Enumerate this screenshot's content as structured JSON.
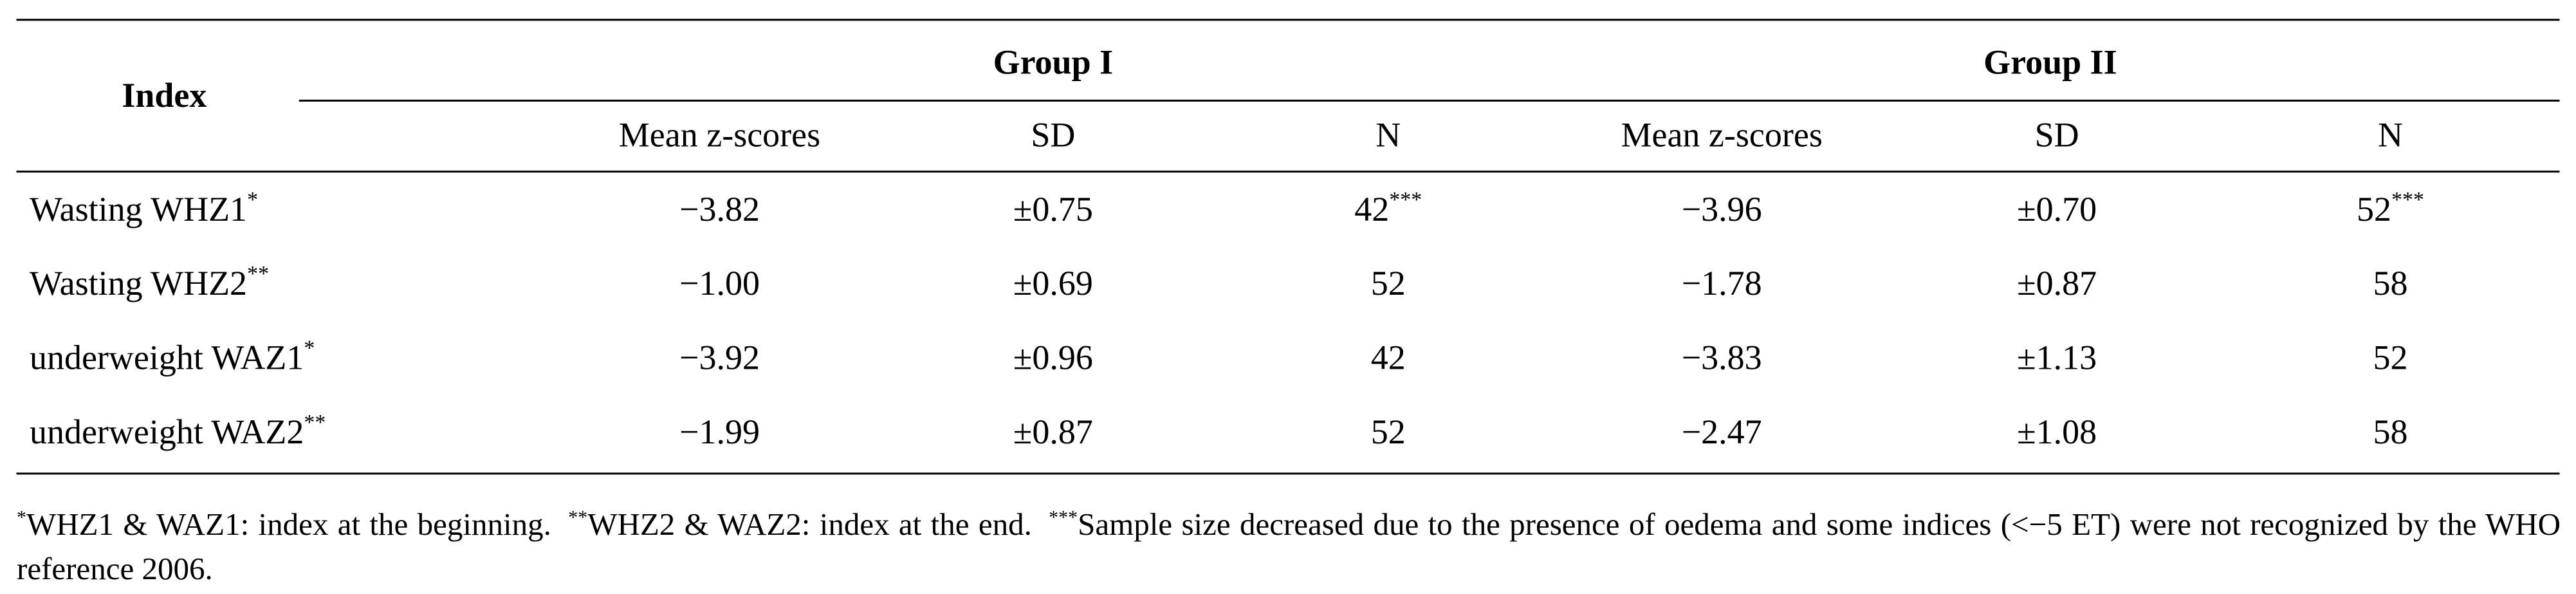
{
  "table": {
    "header": {
      "index": "Index",
      "groups": [
        "Group I",
        "Group II"
      ],
      "columns": [
        "Mean z-scores",
        "SD",
        "N",
        "Mean z-scores",
        "SD",
        "N"
      ]
    },
    "rows": [
      [
        {
          "text": "Wasting WHZ1",
          "sup": "*"
        },
        "−3.82",
        "±0.75",
        {
          "text": "42",
          "sup": "***"
        },
        "−3.96",
        "±0.70",
        {
          "text": "52",
          "sup": "***"
        }
      ],
      [
        {
          "text": "Wasting WHZ2",
          "sup": "**"
        },
        "−1.00",
        "±0.69",
        "52",
        "−1.78",
        "±0.87",
        "58"
      ],
      [
        {
          "text": "underweight WAZ1",
          "sup": "*"
        },
        "−3.92",
        "±0.96",
        "42",
        "−3.83",
        "±1.13",
        "52"
      ],
      [
        {
          "text": "underweight WAZ2",
          "sup": "**"
        },
        "−1.99",
        "±0.87",
        "52",
        "−2.47",
        "±1.08",
        "58"
      ]
    ]
  },
  "footnote": [
    {
      "sup": "*",
      "text": "WHZ1 & WAZ1: index at the beginning."
    },
    {
      "sup": "**",
      "text": "WHZ2 & WAZ2: index at the end."
    },
    {
      "sup": "***",
      "text": "Sample size decreased due to the presence of oedema and some indices (<−5 ET) were not recognized by the WHO reference 2006."
    }
  ]
}
